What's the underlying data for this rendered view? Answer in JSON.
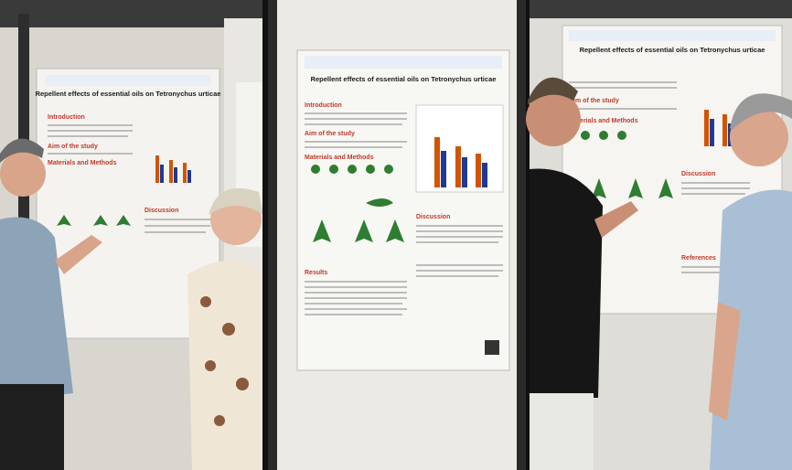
{
  "posters": [
    {
      "title": "Repellent effects of essential oils on Tetronychus urticae",
      "headings": [
        "Introduction",
        "Aim of the study",
        "Materials and Methods",
        "Discussion"
      ]
    },
    {
      "title": "Repellent effects of essential oils on Tetronychus urticae",
      "headings": [
        "Introduction",
        "Aim of the study",
        "Materials and Methods",
        "Results",
        "Discussion"
      ]
    },
    {
      "title": "Repellent effects of essential oils on Tetronychus urticae",
      "headings": [
        "Aim of the study",
        "Materials and Methods",
        "Discussion",
        "References"
      ]
    }
  ]
}
